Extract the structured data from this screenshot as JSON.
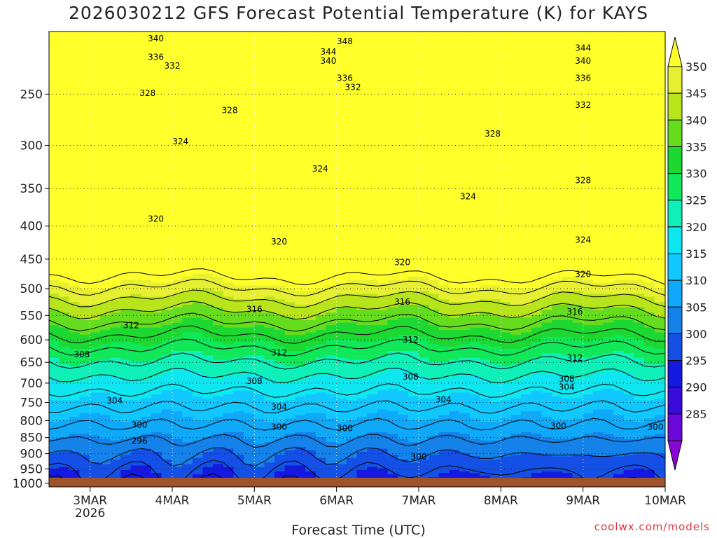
{
  "chart_data": {
    "type": "contour",
    "title": "2026030212 GFS Forecast Potential Temperature (K) for KAYS",
    "xlabel": "Forecast Time (UTC)",
    "ylabel": "",
    "credit": "coolwx.com/models",
    "x_ticks": [
      "3MAR",
      "4MAR",
      "5MAR",
      "6MAR",
      "7MAR",
      "8MAR",
      "9MAR",
      "10MAR"
    ],
    "x_year": "2026",
    "xlim_days": [
      2.5,
      10.0
    ],
    "y_ticks": [
      250,
      300,
      350,
      400,
      450,
      500,
      550,
      600,
      650,
      700,
      750,
      800,
      850,
      900,
      950,
      1000
    ],
    "ylim_hpa": [
      200,
      1013
    ],
    "colorbar_ticks": [
      350,
      345,
      340,
      335,
      330,
      325,
      320,
      315,
      310,
      305,
      300,
      295,
      290,
      285
    ],
    "colorbar_colors": [
      "#ffff2a",
      "#e6f030",
      "#b8e41c",
      "#66dc1e",
      "#1ed832",
      "#10e85a",
      "#0ef0b8",
      "#0ee6f0",
      "#10c8ff",
      "#10a8f8",
      "#1482e8",
      "#1450e6",
      "#1418e0",
      "#3a0cdc",
      "#6a08da",
      "#8a06d6"
    ],
    "contour_interval_K": 4,
    "contour_labels": [
      {
        "value": "348",
        "day": 6.1,
        "p": 207
      },
      {
        "value": "344",
        "day": 5.9,
        "p": 215
      },
      {
        "value": "344",
        "day": 9.0,
        "p": 212
      },
      {
        "value": "340",
        "day": 3.8,
        "p": 205
      },
      {
        "value": "340",
        "day": 5.9,
        "p": 222
      },
      {
        "value": "340",
        "day": 9.0,
        "p": 222
      },
      {
        "value": "336",
        "day": 3.8,
        "p": 219
      },
      {
        "value": "336",
        "day": 6.1,
        "p": 236
      },
      {
        "value": "336",
        "day": 9.0,
        "p": 236
      },
      {
        "value": "332",
        "day": 4.0,
        "p": 226
      },
      {
        "value": "332",
        "day": 6.2,
        "p": 244
      },
      {
        "value": "332",
        "day": 9.0,
        "p": 260
      },
      {
        "value": "328",
        "day": 3.7,
        "p": 249
      },
      {
        "value": "328",
        "day": 4.7,
        "p": 265
      },
      {
        "value": "328",
        "day": 7.9,
        "p": 288
      },
      {
        "value": "328",
        "day": 9.0,
        "p": 340
      },
      {
        "value": "324",
        "day": 4.1,
        "p": 296
      },
      {
        "value": "324",
        "day": 5.8,
        "p": 326
      },
      {
        "value": "324",
        "day": 7.6,
        "p": 360
      },
      {
        "value": "324",
        "day": 9.0,
        "p": 420
      },
      {
        "value": "320",
        "day": 3.8,
        "p": 390
      },
      {
        "value": "320",
        "day": 5.3,
        "p": 423
      },
      {
        "value": "320",
        "day": 6.8,
        "p": 455
      },
      {
        "value": "320",
        "day": 9.0,
        "p": 475
      },
      {
        "value": "316",
        "day": 5.0,
        "p": 538
      },
      {
        "value": "316",
        "day": 6.8,
        "p": 524
      },
      {
        "value": "316",
        "day": 8.9,
        "p": 543
      },
      {
        "value": "312",
        "day": 3.5,
        "p": 570
      },
      {
        "value": "312",
        "day": 5.3,
        "p": 628
      },
      {
        "value": "312",
        "day": 6.9,
        "p": 600
      },
      {
        "value": "312",
        "day": 8.9,
        "p": 640
      },
      {
        "value": "308",
        "day": 2.9,
        "p": 632
      },
      {
        "value": "308",
        "day": 5.0,
        "p": 695
      },
      {
        "value": "308",
        "day": 6.9,
        "p": 685
      },
      {
        "value": "308",
        "day": 8.8,
        "p": 690
      },
      {
        "value": "304",
        "day": 3.3,
        "p": 745
      },
      {
        "value": "304",
        "day": 5.3,
        "p": 762
      },
      {
        "value": "304",
        "day": 7.3,
        "p": 742
      },
      {
        "value": "304",
        "day": 8.8,
        "p": 710
      },
      {
        "value": "300",
        "day": 3.6,
        "p": 812
      },
      {
        "value": "300",
        "day": 5.3,
        "p": 818
      },
      {
        "value": "300",
        "day": 6.1,
        "p": 822
      },
      {
        "value": "300",
        "day": 7.0,
        "p": 910
      },
      {
        "value": "300",
        "day": 8.7,
        "p": 815
      },
      {
        "value": "300",
        "day": 10.1,
        "p": 818
      },
      {
        "value": "296",
        "day": 3.6,
        "p": 860
      }
    ]
  }
}
